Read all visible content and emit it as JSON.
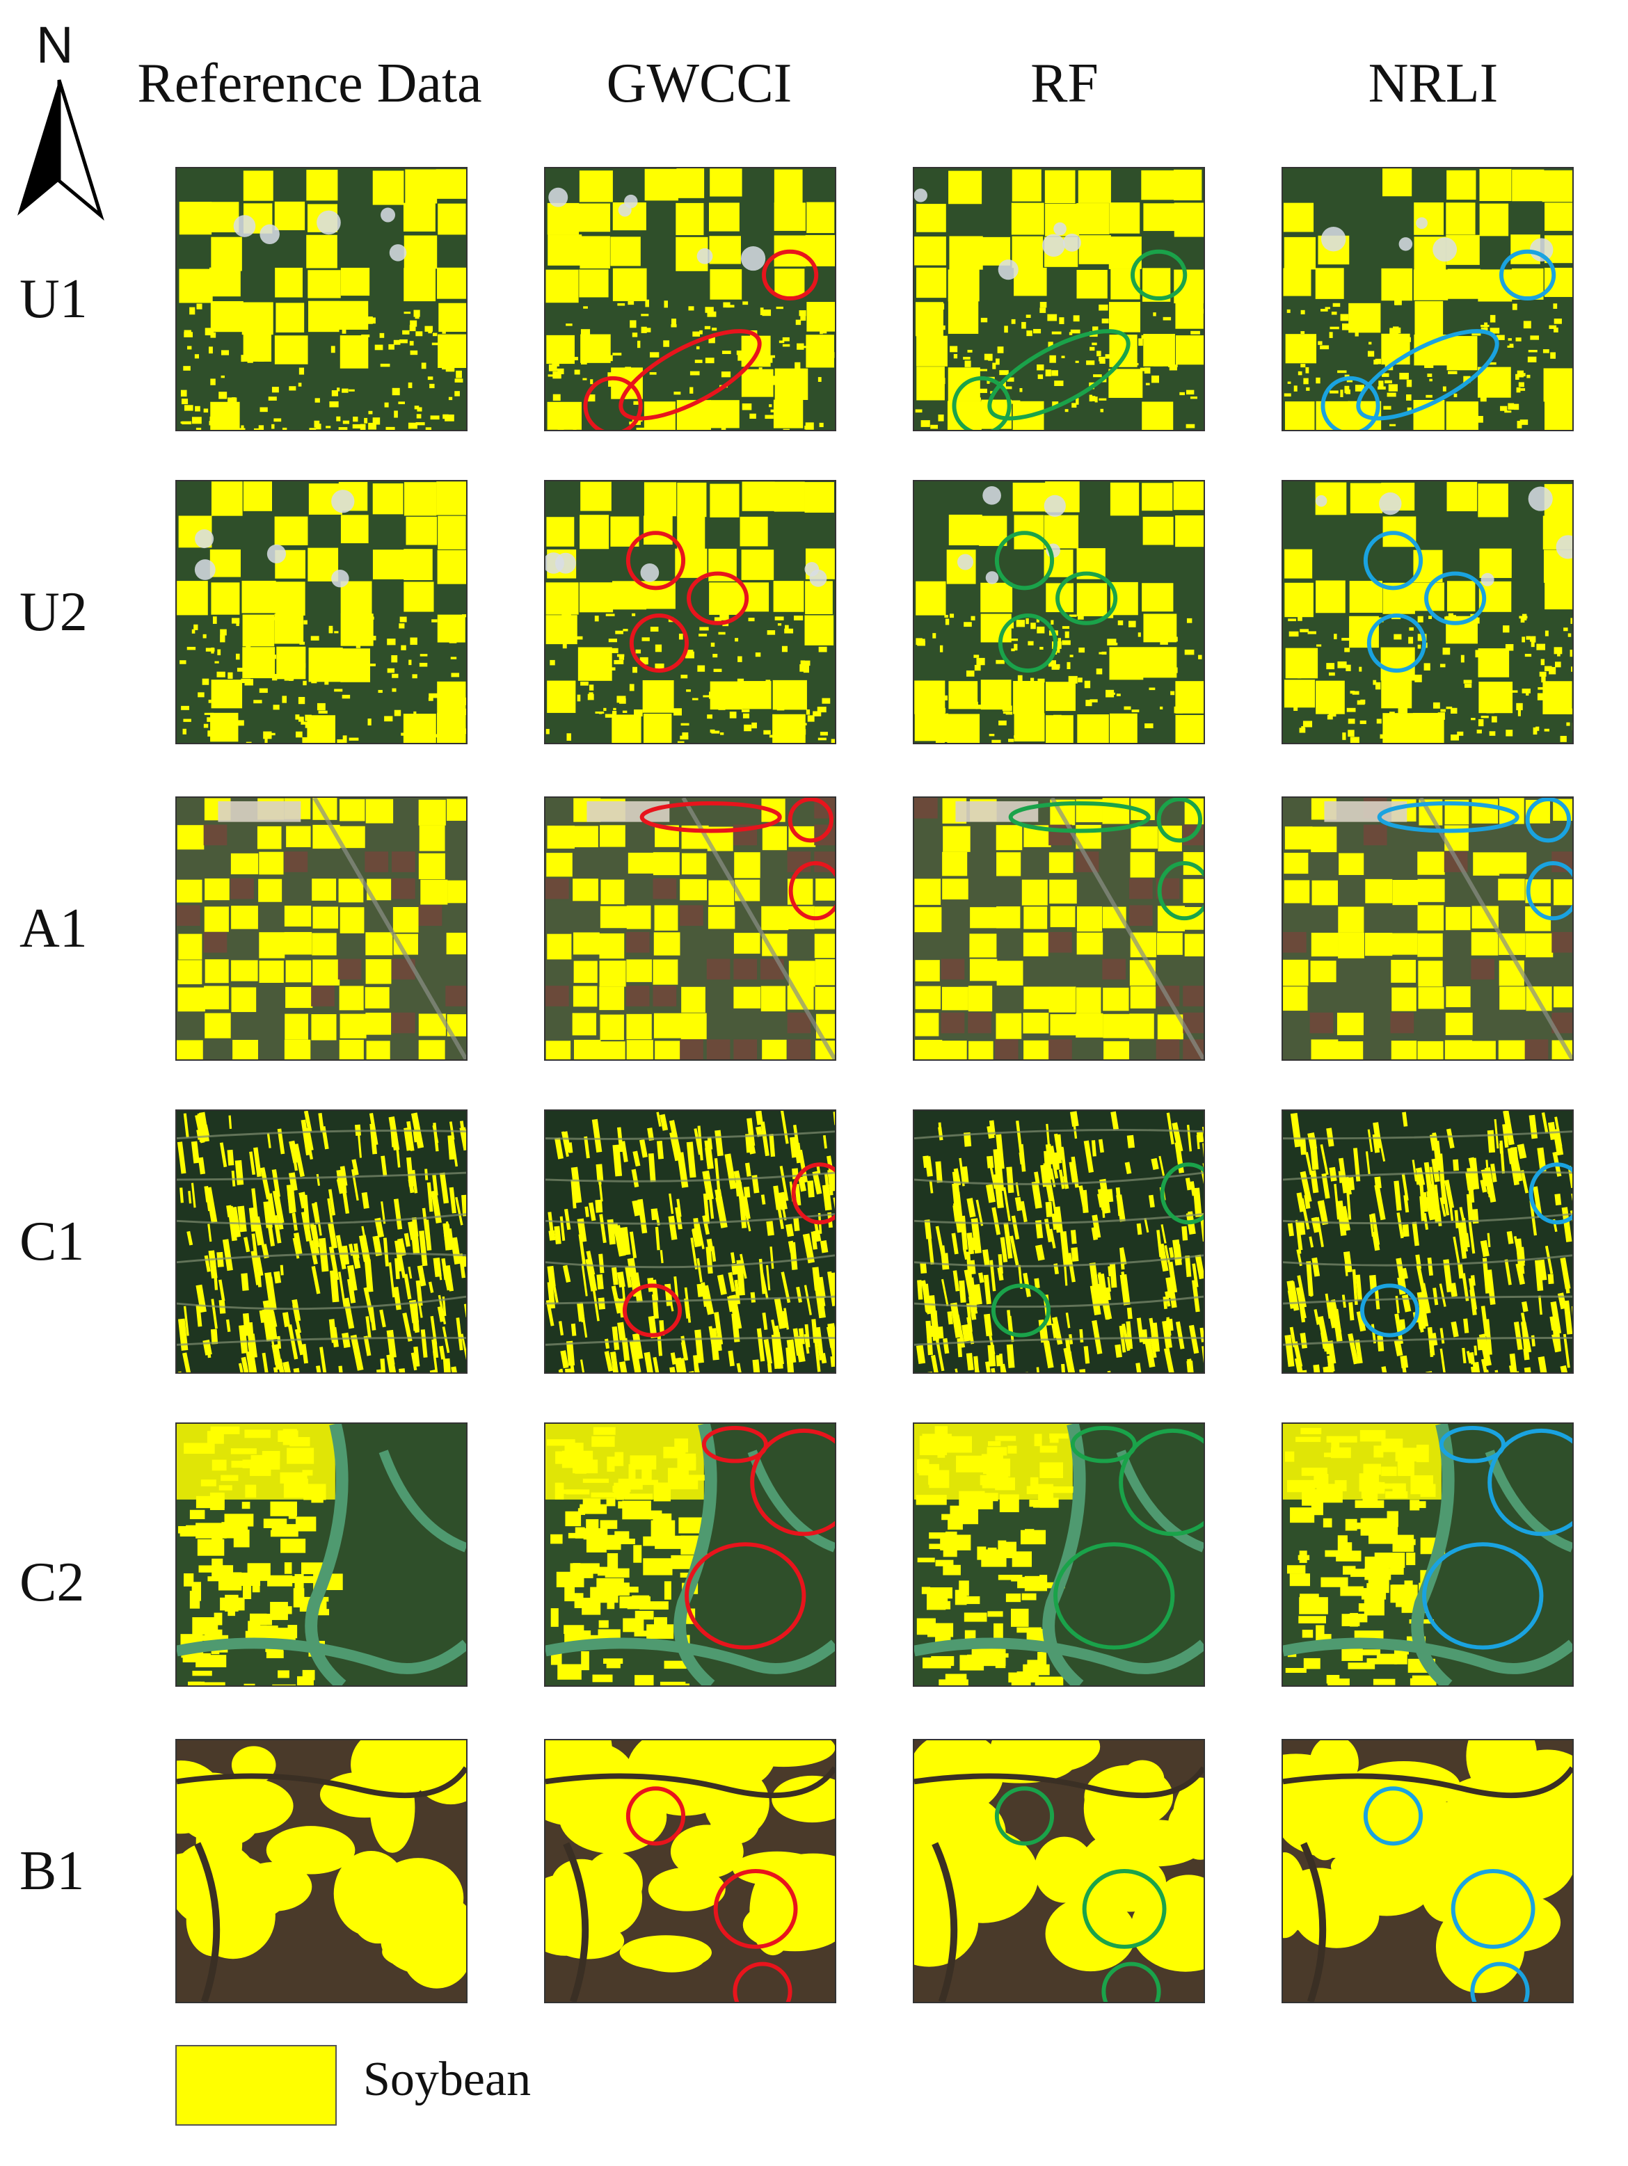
{
  "north_label": "N",
  "columns": [
    {
      "label": "Reference Data",
      "ring_color": null
    },
    {
      "label": "GWCCI",
      "ring_color": "#e8141c"
    },
    {
      "label": "RF",
      "ring_color": "#1aa34a"
    },
    {
      "label": "NRLI",
      "ring_color": "#1aa3e0"
    }
  ],
  "rows": [
    {
      "label": "U1",
      "style": "blocks"
    },
    {
      "label": "U2",
      "style": "blocks"
    },
    {
      "label": "A1",
      "style": "checker"
    },
    {
      "label": "C1",
      "style": "stripes"
    },
    {
      "label": "C2",
      "style": "wetland"
    },
    {
      "label": "B1",
      "style": "blobs"
    }
  ],
  "legend": {
    "label": "Soybean",
    "color": "#ffff00"
  },
  "colors": {
    "vegetation": "#2f4f2a",
    "soybean": "#ffff00",
    "water": "#4f9a70",
    "soil": "#6b4a3a"
  }
}
